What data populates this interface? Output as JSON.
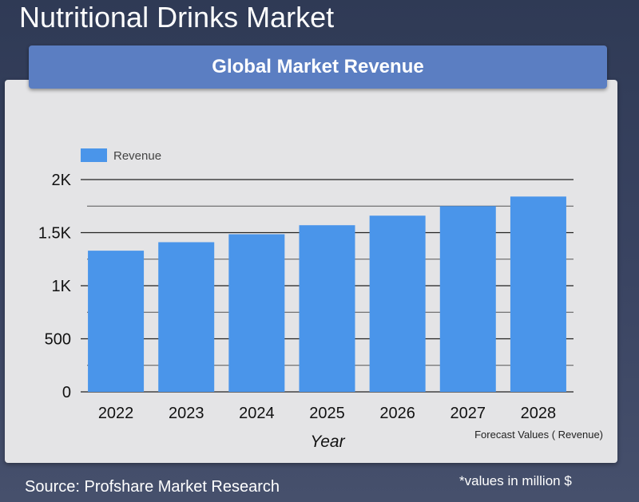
{
  "page": {
    "title": "Nutritional Drinks Market",
    "source": "Source: Profshare Market Research",
    "note": "*values in million $"
  },
  "chart_data": {
    "type": "bar",
    "title": "Global Market Revenue",
    "categories": [
      "2022",
      "2023",
      "2024",
      "2025",
      "2026",
      "2027",
      "2028"
    ],
    "series": [
      {
        "name": "Revenue",
        "values": [
          1330,
          1410,
          1485,
          1570,
          1660,
          1750,
          1840
        ],
        "color": "#4a95ea"
      }
    ],
    "xlabel": "Year",
    "ylabel": "",
    "ylim": [
      0,
      2000
    ],
    "yticks": [
      0,
      500,
      1000,
      1500,
      2000
    ],
    "ytick_labels": [
      "0",
      "500",
      "1K",
      "1.5K",
      "2K"
    ],
    "grid": true,
    "legend": "top-left",
    "annotation": "Forecast Values ( Revenue)"
  }
}
